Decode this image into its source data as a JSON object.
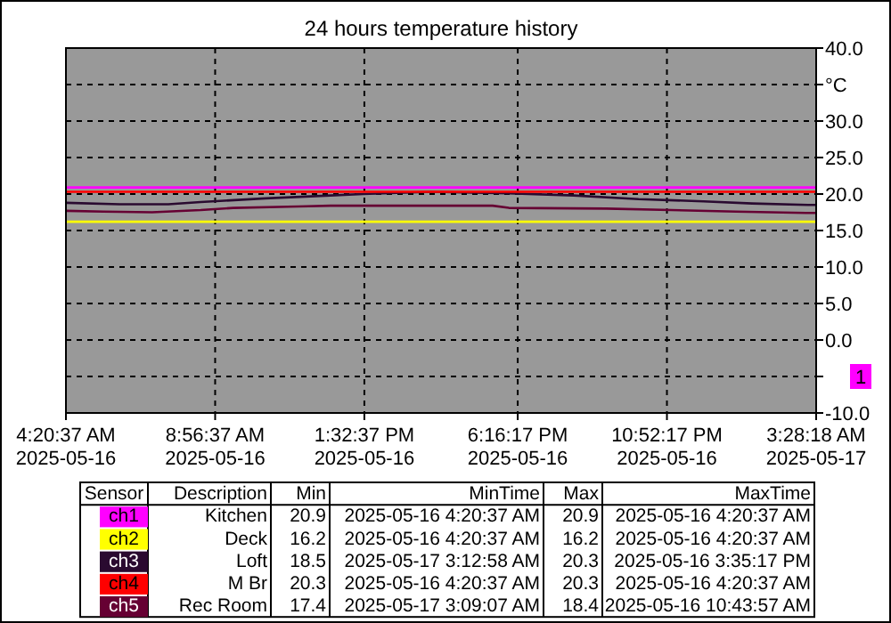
{
  "chart_data": {
    "type": "line",
    "title": "24 hours temperature history",
    "x": [
      "2025-05-16T04:20:37",
      "2025-05-17T03:28:18"
    ],
    "xlim": [
      "2025-05-16T04:20:37",
      "2025-05-17T03:28:18"
    ],
    "xticks": [
      {
        "value": "2025-05-16T04:20:37",
        "label": "4:20:37 AM\n2025-05-16"
      },
      {
        "value": "2025-05-16T08:56:37",
        "label": "8:56:37 AM\n2025-05-16"
      },
      {
        "value": "2025-05-16T13:32:37",
        "label": "1:32:37 PM\n2025-05-16"
      },
      {
        "value": "2025-05-16T18:16:17",
        "label": "6:16:17 PM\n2025-05-16"
      },
      {
        "value": "2025-05-16T22:52:17",
        "label": "10:52:17 PM\n2025-05-16"
      },
      {
        "value": "2025-05-17T03:28:18",
        "label": "3:28:18 AM\n2025-05-17"
      }
    ],
    "ylim": [
      -10,
      40
    ],
    "yticks": [
      {
        "value": 40,
        "label": "40.0"
      },
      {
        "value": 35,
        "label": "°C"
      },
      {
        "value": 30,
        "label": "30.0"
      },
      {
        "value": 25,
        "label": "25.0"
      },
      {
        "value": 20,
        "label": "20.0"
      },
      {
        "value": 15,
        "label": "15.0"
      },
      {
        "value": 10,
        "label": "10.0"
      },
      {
        "value": 5,
        "label": "5.0"
      },
      {
        "value": 0,
        "label": "0.0"
      },
      {
        "value": -5,
        "label": null
      },
      {
        "value": -10,
        "label": "-10.0"
      }
    ],
    "grid": true,
    "legend": "bottom",
    "line_style": "solid",
    "marker": "none",
    "series": [
      {
        "name": "ch1",
        "color": "#ff00ff",
        "values": [
          20.9,
          20.9
        ]
      },
      {
        "name": "ch2",
        "color": "#ffff00",
        "values": [
          16.2,
          16.2
        ]
      },
      {
        "name": "ch3",
        "color": "#2a0a30",
        "x": [
          "2025-05-16T04:20:37",
          "2025-05-16T06:00",
          "2025-05-16T07:30",
          "2025-05-16T08:30",
          "2025-05-16T10:30",
          "2025-05-16T12:30",
          "2025-05-16T13:30",
          "2025-05-16T15:35",
          "2025-05-16T18:00",
          "2025-05-16T20:00",
          "2025-05-16T22:00",
          "2025-05-17T00:00",
          "2025-05-17T01:30",
          "2025-05-17T03:13",
          "2025-05-17T03:28:18"
        ],
        "values": [
          18.8,
          18.6,
          18.6,
          18.9,
          19.4,
          19.8,
          20.0,
          20.3,
          20.1,
          19.8,
          19.3,
          19.0,
          18.7,
          18.5,
          18.5
        ]
      },
      {
        "name": "ch4",
        "color": "#ff0000",
        "values": [
          20.3,
          20.3
        ]
      },
      {
        "name": "ch5",
        "color": "#660033",
        "x": [
          "2025-05-16T04:20:37",
          "2025-05-16T05:30",
          "2025-05-16T07:00",
          "2025-05-16T08:30",
          "2025-05-16T09:30",
          "2025-05-16T11:30",
          "2025-05-16T12:30",
          "2025-05-16T17:30",
          "2025-05-16T18:00",
          "2025-05-16T21:00",
          "2025-05-16T23:00",
          "2025-05-17T01:00",
          "2025-05-17T03:09",
          "2025-05-17T03:28:18"
        ],
        "values": [
          17.7,
          17.6,
          17.5,
          17.8,
          18.1,
          18.3,
          18.4,
          18.4,
          18.1,
          18.0,
          17.8,
          17.6,
          17.4,
          17.4
        ]
      }
    ],
    "annotations": [
      "1",
      "Sensor",
      "Description",
      "Min",
      "MinTime",
      "Max",
      "MaxTime",
      "Kitchen",
      "20.9",
      "2025-05-16 4:20:37 AM",
      "20.9",
      "2025-05-16 4:20:37 AM",
      "Deck",
      "16.2",
      "2025-05-16 4:20:37 AM",
      "16.2",
      "2025-05-16 4:20:37 AM",
      "Loft",
      "18.5",
      "2025-05-17 3:12:58 AM",
      "20.3",
      "2025-05-16 3:35:17 PM",
      "M Br",
      "20.3",
      "2025-05-16 4:20:37 AM",
      "20.3",
      "2025-05-16 4:20:37 AM",
      "Rec Room",
      "17.4",
      "2025-05-17 3:09:07 AM",
      "18.4",
      "2025-05-16 10:43:57 AM"
    ]
  }
}
